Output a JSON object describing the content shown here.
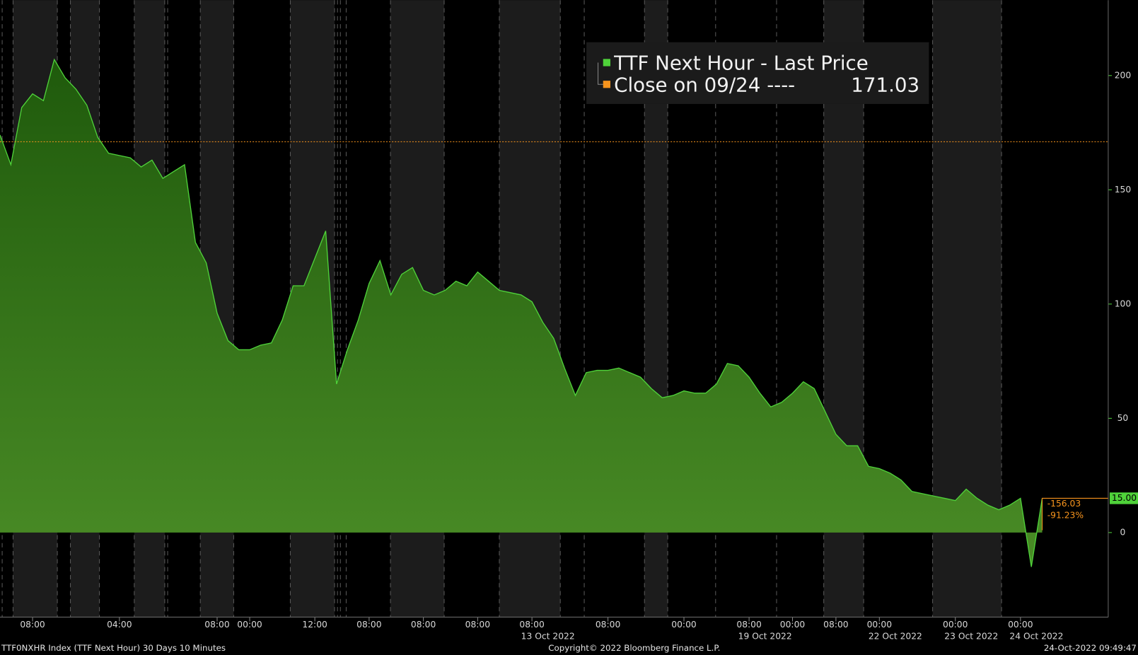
{
  "chart_data": {
    "type": "area",
    "categories": [
      null,
      null,
      null,
      "08:00",
      null,
      null,
      null,
      null,
      null,
      null,
      null,
      "04:00",
      null,
      null,
      null,
      null,
      null,
      null,
      null,
      null,
      "08:00",
      null,
      null,
      "00:00",
      null,
      null,
      null,
      null,
      null,
      "12:00",
      null,
      null,
      null,
      null,
      "08:00",
      null,
      null,
      null,
      null,
      "08:00",
      null,
      null,
      null,
      null,
      "08:00",
      null,
      null,
      null,
      null,
      "08:00",
      null,
      null,
      null,
      null,
      null,
      null,
      "08:00",
      null,
      null,
      null,
      null,
      null,
      null,
      "00:00",
      null,
      null,
      null,
      null,
      null,
      "08:00",
      null,
      null,
      null,
      "00:00",
      null,
      null,
      null,
      "08:00",
      null,
      null,
      null,
      "00:00",
      null,
      null,
      null,
      null,
      null,
      null,
      "00:00",
      null,
      null,
      null,
      null,
      null,
      "00:00",
      null,
      null
    ],
    "dates": [
      null,
      null,
      null,
      null,
      null,
      null,
      null,
      null,
      null,
      null,
      null,
      null,
      null,
      null,
      null,
      null,
      null,
      null,
      null,
      null,
      null,
      null,
      null,
      null,
      null,
      null,
      null,
      null,
      null,
      null,
      null,
      null,
      null,
      null,
      null,
      null,
      null,
      null,
      null,
      null,
      null,
      null,
      null,
      null,
      null,
      null,
      null,
      null,
      null,
      "13 Oct 2022",
      null,
      null,
      null,
      null,
      null,
      null,
      null,
      null,
      null,
      null,
      null,
      null,
      null,
      null,
      null,
      null,
      null,
      null,
      null,
      "19 Oct 2022",
      null,
      null,
      null,
      null,
      null,
      null,
      null,
      null,
      null,
      null,
      null,
      "22 Oct 2022",
      null,
      null,
      null,
      null,
      null,
      null,
      "23 Oct 2022",
      null,
      null,
      null,
      null,
      null,
      "24 Oct 2022",
      null,
      null
    ],
    "series": [
      {
        "name": "TTF Next Hour - Last Price",
        "color": "#4fd23a",
        "values": [
          174,
          161,
          186,
          192,
          189,
          207,
          199,
          194,
          187,
          173,
          166,
          165,
          164,
          160,
          163,
          155,
          158,
          161,
          127,
          118,
          96,
          84,
          80,
          80,
          82,
          83,
          93,
          108,
          108,
          120,
          132,
          65,
          80,
          93,
          109,
          119,
          104,
          113,
          116,
          106,
          104,
          106,
          110,
          108,
          114,
          110,
          106,
          105,
          104,
          101,
          92,
          85,
          72,
          60,
          70,
          71,
          71,
          72,
          70,
          68,
          63,
          59,
          60,
          62,
          61,
          61,
          65,
          74,
          73,
          68,
          61,
          55,
          57,
          61,
          66,
          63,
          53,
          43,
          38,
          38,
          29,
          28,
          26,
          23,
          18,
          17,
          16,
          15,
          14,
          19,
          15,
          12,
          10,
          12,
          15,
          -15,
          15
        ]
      }
    ],
    "ref_line": {
      "name": "Close on 09/24 ----",
      "value": 171.03,
      "color": "#f7941d"
    },
    "last_price": {
      "value": 15,
      "label": "15.00"
    },
    "change": -156.03,
    "change_pct": {
      "value": -91.23,
      "label": "-91.23%"
    },
    "ylim": [
      -37,
      233
    ],
    "yticks": [
      0,
      50,
      100,
      150,
      200
    ],
    "footer": {
      "left": "TTF0NXHR Index (TTF Next Hour) 30 Days 10 Minutes",
      "center": "Copyright© 2022 Bloomberg Finance L.P.",
      "right": "24-Oct-2022 09:49:47"
    }
  }
}
